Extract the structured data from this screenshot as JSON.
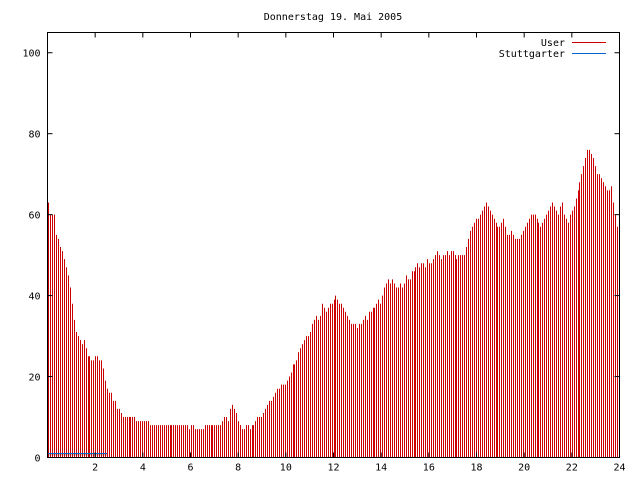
{
  "chart_data": {
    "type": "bar",
    "title": "Donnerstag 19. Mai 2005",
    "xlabel": "",
    "ylabel": "",
    "xlim": [
      0,
      24
    ],
    "ylim": [
      0,
      105
    ],
    "x_ticks": [
      2,
      4,
      6,
      8,
      10,
      12,
      14,
      16,
      18,
      20,
      22,
      24
    ],
    "y_ticks": [
      0,
      20,
      40,
      60,
      80,
      100
    ],
    "grid": false,
    "legend_position": "top-right",
    "bin_width_hours": 0.0833,
    "series": [
      {
        "name": "User",
        "color": "#cc0000",
        "values": [
          63,
          60,
          60,
          60,
          55,
          54,
          52,
          51,
          49,
          47,
          45,
          42,
          38,
          34,
          31,
          30,
          29,
          28,
          29,
          27,
          25,
          25,
          24,
          24,
          25,
          25,
          24,
          24,
          22,
          19,
          17,
          16,
          16,
          14,
          14,
          12,
          12,
          11,
          10,
          10,
          10,
          10,
          10,
          10,
          10,
          9,
          9,
          9,
          9,
          9,
          9,
          9,
          8,
          8,
          8,
          8,
          8,
          8,
          8,
          8,
          8,
          8,
          8,
          8,
          8,
          8,
          8,
          8,
          8,
          8,
          8,
          8,
          7,
          8,
          8,
          7,
          7,
          7,
          7,
          7,
          8,
          8,
          8,
          8,
          8,
          8,
          8,
          8,
          8,
          9,
          10,
          10,
          9,
          12,
          13,
          12,
          11,
          9,
          8,
          7,
          7,
          8,
          8,
          7,
          8,
          8,
          9,
          10,
          10,
          10,
          11,
          12,
          13,
          14,
          14,
          15,
          16,
          17,
          17,
          18,
          18,
          18,
          19,
          20,
          21,
          23,
          23,
          24,
          26,
          27,
          28,
          29,
          30,
          30,
          31,
          33,
          34,
          35,
          34,
          35,
          38,
          37,
          36,
          37,
          38,
          38,
          39,
          40,
          39,
          38,
          38,
          37,
          36,
          35,
          34,
          33,
          33,
          33,
          32,
          33,
          33,
          34,
          35,
          34,
          36,
          36,
          37,
          37,
          38,
          39,
          38,
          40,
          42,
          43,
          44,
          43,
          44,
          43,
          42,
          42,
          43,
          42,
          43,
          45,
          44,
          44,
          46,
          46,
          47,
          48,
          47,
          48,
          48,
          47,
          49,
          48,
          48,
          49,
          50,
          51,
          50,
          49,
          50,
          50,
          51,
          50,
          51,
          51,
          50,
          49,
          50,
          50,
          50,
          50,
          52,
          54,
          56,
          57,
          58,
          59,
          59,
          60,
          61,
          62,
          63,
          62,
          61,
          60,
          59,
          58,
          57,
          57,
          58,
          59,
          57,
          55,
          55,
          56,
          55,
          54,
          54,
          54,
          55,
          56,
          57,
          58,
          59,
          60,
          60,
          60,
          59,
          58,
          57,
          58,
          59,
          60,
          61,
          62,
          63,
          62,
          61,
          60,
          62,
          63,
          60,
          59,
          58,
          60,
          61,
          62,
          64,
          66,
          68,
          70,
          72,
          74,
          76,
          76,
          75,
          74,
          72,
          70,
          70,
          69,
          68,
          67,
          66,
          66,
          67,
          63,
          60,
          57,
          56
        ]
      },
      {
        "name": "Stuttgarter",
        "color": "#0066cc",
        "x_range": [
          0,
          2.5
        ],
        "values": [
          1
        ]
      }
    ]
  }
}
